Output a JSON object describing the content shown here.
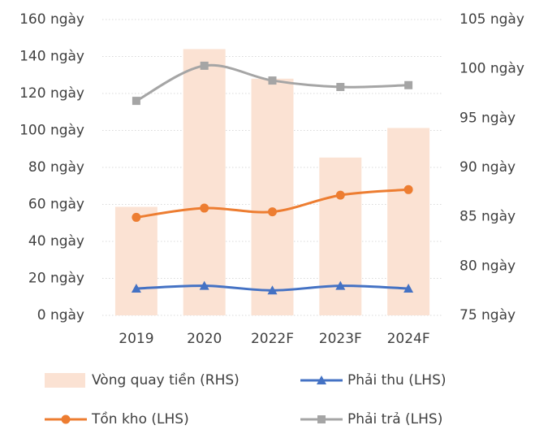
{
  "chart_data": {
    "type": "bar-line",
    "categories": [
      "2019",
      "2020",
      "2022F",
      "2023F",
      "2024F"
    ],
    "series": [
      {
        "name": "Vòng quay tiền (RHS)",
        "type": "bar",
        "axis": "y2",
        "color": "#fbe2d3",
        "values": [
          86,
          102,
          99,
          91,
          94
        ]
      },
      {
        "name": "Phải thu (LHS)",
        "type": "line",
        "marker": "triangle",
        "color": "#4472c4",
        "values": [
          14.5,
          16,
          13.5,
          16,
          14.5
        ]
      },
      {
        "name": "Tồn kho (LHS)",
        "type": "line",
        "marker": "circle",
        "color": "#ed7d31",
        "values": [
          53,
          58,
          56,
          65,
          68
        ]
      },
      {
        "name": "Phải trả (LHS)",
        "type": "line",
        "marker": "square",
        "color": "#a5a5a5",
        "values": [
          116,
          135,
          127,
          123.5,
          124.5
        ]
      }
    ],
    "ylim": [
      0,
      160
    ],
    "yticks": [
      {
        "value": 0,
        "label": "0 ngày"
      },
      {
        "value": 20,
        "label": "20 ngày"
      },
      {
        "value": 40,
        "label": "40 ngày"
      },
      {
        "value": 60,
        "label": "60 ngày"
      },
      {
        "value": 80,
        "label": "80 ngày"
      },
      {
        "value": 100,
        "label": "100 ngày"
      },
      {
        "value": 120,
        "label": "120 ngày"
      },
      {
        "value": 140,
        "label": "140 ngày"
      },
      {
        "value": 160,
        "label": "160 ngày"
      }
    ],
    "y2lim": [
      75,
      105
    ],
    "y2ticks": [
      {
        "value": 75,
        "label": "75 ngày"
      },
      {
        "value": 80,
        "label": "80 ngày"
      },
      {
        "value": 85,
        "label": "85 ngày"
      },
      {
        "value": 90,
        "label": "90 ngày"
      },
      {
        "value": 95,
        "label": "95 ngày"
      },
      {
        "value": 100,
        "label": "100 ngày"
      },
      {
        "value": 105,
        "label": "105 ngày"
      }
    ],
    "grid": true,
    "legend": "bottom"
  }
}
